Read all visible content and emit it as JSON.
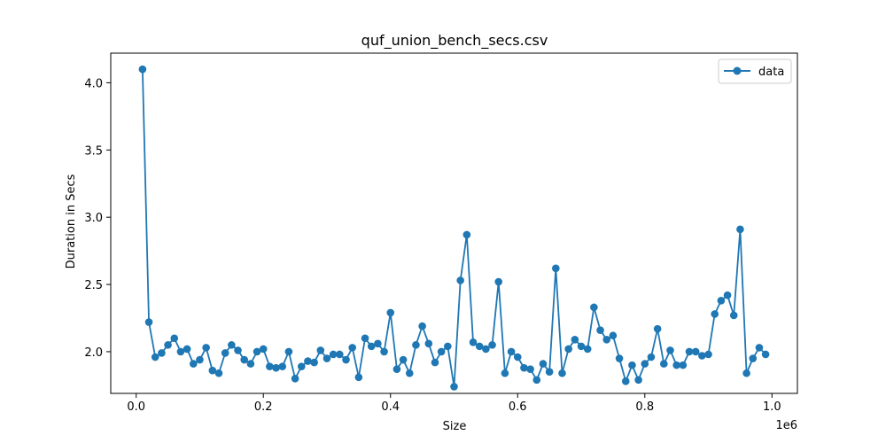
{
  "chart_data": {
    "type": "line",
    "title": "quf_union_bench_secs.csv",
    "xlabel": "Size",
    "ylabel": "Duration in Secs",
    "x_offset_label": "1e6",
    "xlim": [
      -0.04,
      1.04
    ],
    "ylim": [
      1.69,
      4.22
    ],
    "x_ticks": [
      0.0,
      0.2,
      0.4,
      0.6,
      0.8,
      1.0
    ],
    "x_tick_labels": [
      "0.0",
      "0.2",
      "0.4",
      "0.6",
      "0.8",
      "1.0"
    ],
    "y_ticks": [
      2.0,
      2.5,
      3.0,
      3.5,
      4.0
    ],
    "y_tick_labels": [
      "2.0",
      "2.5",
      "3.0",
      "3.5",
      "4.0"
    ],
    "grid": false,
    "legend_position": "top-right",
    "line_color": "#1f77b4",
    "series": [
      {
        "name": "data",
        "x": [
          0.01,
          0.02,
          0.03,
          0.04,
          0.05,
          0.06,
          0.07,
          0.08,
          0.09,
          0.1,
          0.11,
          0.12,
          0.13,
          0.14,
          0.15,
          0.16,
          0.17,
          0.18,
          0.19,
          0.2,
          0.21,
          0.22,
          0.23,
          0.24,
          0.25,
          0.26,
          0.27,
          0.28,
          0.29,
          0.3,
          0.31,
          0.32,
          0.33,
          0.34,
          0.35,
          0.36,
          0.37,
          0.38,
          0.39,
          0.4,
          0.41,
          0.42,
          0.43,
          0.44,
          0.45,
          0.46,
          0.47,
          0.48,
          0.49,
          0.5,
          0.51,
          0.52,
          0.53,
          0.54,
          0.55,
          0.56,
          0.57,
          0.58,
          0.59,
          0.6,
          0.61,
          0.62,
          0.63,
          0.64,
          0.65,
          0.66,
          0.67,
          0.68,
          0.69,
          0.7,
          0.71,
          0.72,
          0.73,
          0.74,
          0.75,
          0.76,
          0.77,
          0.78,
          0.79,
          0.8,
          0.81,
          0.82,
          0.83,
          0.84,
          0.85,
          0.86,
          0.87,
          0.88,
          0.89,
          0.9,
          0.91,
          0.92,
          0.93,
          0.94,
          0.95,
          0.96,
          0.97,
          0.98,
          0.99
        ],
        "y": [
          4.1,
          2.22,
          1.96,
          1.99,
          2.05,
          2.1,
          2.0,
          2.02,
          1.91,
          1.94,
          2.03,
          1.86,
          1.84,
          1.99,
          2.05,
          2.01,
          1.94,
          1.91,
          2.0,
          2.02,
          1.89,
          1.88,
          1.89,
          2.0,
          1.8,
          1.89,
          1.93,
          1.92,
          2.01,
          1.95,
          1.98,
          1.98,
          1.94,
          2.03,
          1.81,
          2.1,
          2.04,
          2.06,
          2.0,
          2.29,
          1.87,
          1.94,
          1.84,
          2.05,
          2.19,
          2.06,
          1.92,
          2.0,
          2.04,
          1.74,
          2.53,
          2.87,
          2.07,
          2.04,
          2.02,
          2.05,
          2.52,
          1.84,
          2.0,
          1.96,
          1.88,
          1.87,
          1.79,
          1.91,
          1.85,
          2.62,
          1.84,
          2.02,
          2.09,
          2.04,
          2.02,
          2.33,
          2.16,
          2.09,
          2.12,
          1.95,
          1.78,
          1.9,
          1.79,
          1.91,
          1.96,
          2.17,
          1.91,
          2.01,
          1.9,
          1.9,
          2.0,
          2.0,
          1.97,
          1.98,
          2.28,
          2.38,
          2.42,
          2.27,
          2.91,
          1.84,
          1.95,
          2.03,
          1.98
        ]
      }
    ]
  }
}
